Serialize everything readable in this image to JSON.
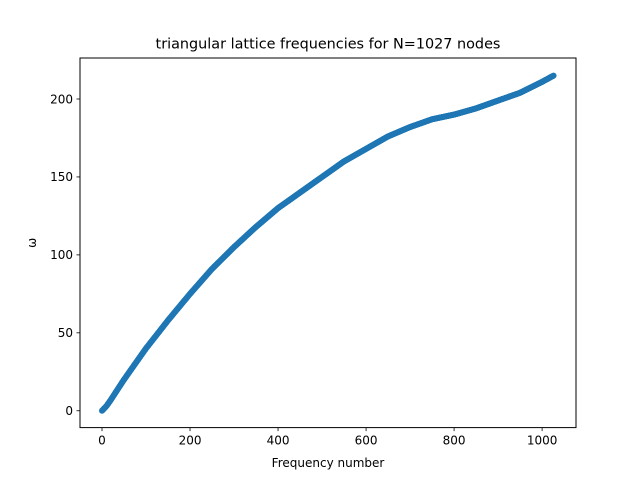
{
  "chart_data": {
    "type": "scatter",
    "title": "triangular lattice frequencies for N=1027 nodes",
    "xlabel": "Frequency number",
    "ylabel": "ω",
    "xlim": [
      -50,
      1077
    ],
    "ylim": [
      -10.8,
      226.3
    ],
    "xticks": [
      0,
      200,
      400,
      600,
      800,
      1000
    ],
    "yticks": [
      0,
      50,
      100,
      150,
      200
    ],
    "grid": false,
    "color": "#1f77b4",
    "n_points": 1027,
    "curve": [
      [
        0,
        0
      ],
      [
        10,
        3
      ],
      [
        20,
        7
      ],
      [
        50,
        20
      ],
      [
        100,
        40
      ],
      [
        150,
        58
      ],
      [
        200,
        75
      ],
      [
        250,
        91
      ],
      [
        300,
        105
      ],
      [
        350,
        118
      ],
      [
        400,
        130
      ],
      [
        450,
        140
      ],
      [
        500,
        150
      ],
      [
        550,
        160
      ],
      [
        600,
        168
      ],
      [
        650,
        176
      ],
      [
        700,
        182
      ],
      [
        750,
        187
      ],
      [
        800,
        190
      ],
      [
        850,
        194
      ],
      [
        900,
        199
      ],
      [
        950,
        204
      ],
      [
        1000,
        211
      ],
      [
        1026,
        215
      ]
    ]
  }
}
